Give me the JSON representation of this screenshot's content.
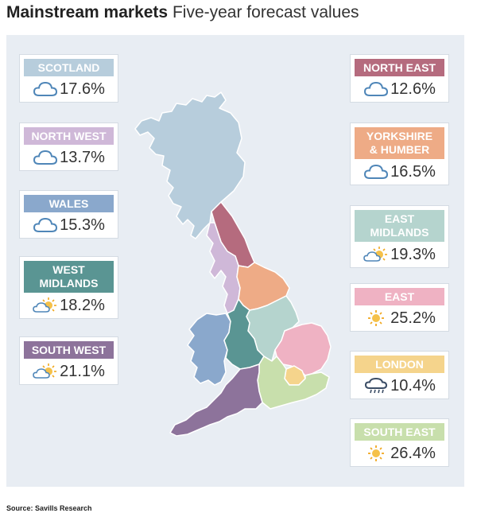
{
  "title": {
    "bold": "Mainstream markets",
    "rest": "Five-year forecast values"
  },
  "source": "Source: Savills Research",
  "colors": {
    "scotland": "#b7cddc",
    "north_east": "#b56b7e",
    "north_west": "#cfb8d8",
    "yorkshire": "#eeab86",
    "wales": "#8aa8cc",
    "east_midlands": "#b5d4ce",
    "west_midlands": "#5a9593",
    "east": "#efb2c3",
    "south_west": "#8d739b",
    "london": "#f5d48c",
    "south_east": "#c8dfac"
  },
  "regions": [
    {
      "id": "scotland",
      "name": "SCOTLAND",
      "value": "17.6%",
      "icon": "cloud-icon"
    },
    {
      "id": "north_west",
      "name": "NORTH WEST",
      "value": "13.7%",
      "icon": "cloud-icon"
    },
    {
      "id": "wales",
      "name": "WALES",
      "value": "15.3%",
      "icon": "cloud-icon"
    },
    {
      "id": "west_midlands",
      "name": "WEST MIDLANDS",
      "value": "18.2%",
      "icon": "sun-cloud-icon"
    },
    {
      "id": "south_west",
      "name": "SOUTH WEST",
      "value": "21.1%",
      "icon": "sun-cloud-icon"
    },
    {
      "id": "north_east",
      "name": "NORTH EAST",
      "value": "12.6%",
      "icon": "cloud-icon"
    },
    {
      "id": "yorkshire",
      "name": "YORKSHIRE & HUMBER",
      "value": "16.5%",
      "icon": "cloud-icon"
    },
    {
      "id": "east_midlands",
      "name": "EAST MIDLANDS",
      "value": "19.3%",
      "icon": "sun-cloud-icon"
    },
    {
      "id": "east",
      "name": "EAST",
      "value": "25.2%",
      "icon": "sun-icon"
    },
    {
      "id": "london",
      "name": "LONDON",
      "value": "10.4%",
      "icon": "rain-cloud-icon"
    },
    {
      "id": "south_east",
      "name": "SOUTH EAST",
      "value": "26.4%",
      "icon": "sun-icon"
    }
  ]
}
